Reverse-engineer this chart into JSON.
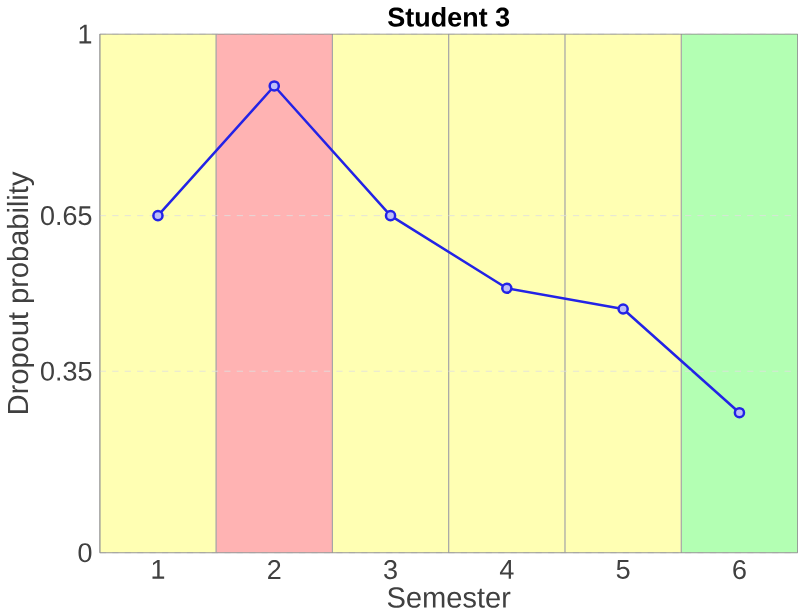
{
  "chart_data": {
    "type": "line",
    "title": "Student 3",
    "xlabel": "Semester",
    "ylabel": "Dropout probability",
    "x": [
      1,
      2,
      3,
      4,
      5,
      6
    ],
    "series": [
      {
        "color": "#2323e6",
        "values": [
          0.65,
          0.9,
          0.65,
          0.51,
          0.47,
          0.27
        ]
      }
    ],
    "xlim": [
      0.5,
      6.5
    ],
    "xticks": [
      1,
      2,
      3,
      4,
      5,
      6
    ],
    "ylim": [
      0,
      1
    ],
    "yticks": [
      0,
      0.35,
      0.65,
      1
    ],
    "bands": [
      {
        "axis": "x",
        "from": 0.5,
        "to": 1.5,
        "color": "#ffffb3"
      },
      {
        "axis": "x",
        "from": 1.5,
        "to": 2.5,
        "color": "#ffb3b3"
      },
      {
        "axis": "x",
        "from": 2.5,
        "to": 3.5,
        "color": "#ffffb3"
      },
      {
        "axis": "x",
        "from": 3.5,
        "to": 4.5,
        "color": "#ffffb3"
      },
      {
        "axis": "x",
        "from": 4.5,
        "to": 5.5,
        "color": "#ffffb3"
      },
      {
        "axis": "x",
        "from": 5.5,
        "to": 6.5,
        "color": "#b3ffb3"
      }
    ],
    "grid": "y",
    "marker": "circle",
    "line_style": "solid"
  }
}
